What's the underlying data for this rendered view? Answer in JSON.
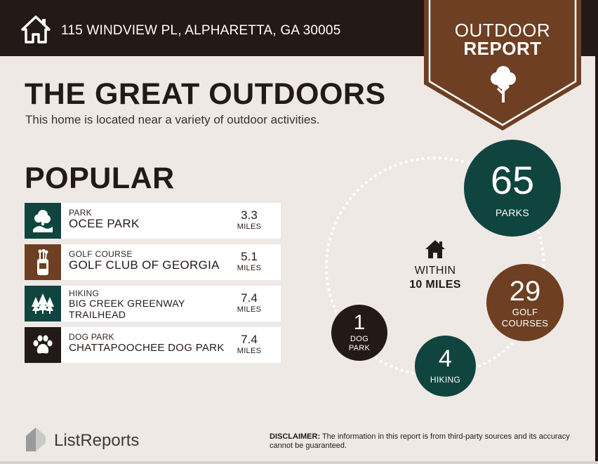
{
  "header": {
    "address": "115 WINDVIEW PL, ALPHARETTA, GA 30005",
    "badge_line1": "OUTDOOR",
    "badge_line2": "REPORT"
  },
  "intro": {
    "title": "THE GREAT OUTDOORS",
    "subtitle": "This home is located near a variety of outdoor activities."
  },
  "popular": {
    "heading": "POPULAR",
    "items": [
      {
        "category": "PARK",
        "name": "OCEE PARK",
        "distance": "3.3",
        "unit": "MILES",
        "icon": "park-icon",
        "color": "#10443f"
      },
      {
        "category": "GOLF COURSE",
        "name": "GOLF CLUB OF GEORGIA",
        "distance": "5.1",
        "unit": "MILES",
        "icon": "golf-bag-icon",
        "color": "#6e3f22"
      },
      {
        "category": "HIKING",
        "name_line1": "BIG CREEK GREENWAY",
        "name_line2": "TRAILHEAD",
        "distance": "7.4",
        "unit": "MILES",
        "icon": "pine-trees-icon",
        "color": "#10443f"
      },
      {
        "category": "DOG PARK",
        "name": "CHATTAPOOCHEE DOG PARK",
        "distance": "7.4",
        "unit": "MILES",
        "icon": "paw-icon",
        "color": "#231916"
      }
    ]
  },
  "summary": {
    "within_line1": "WITHIN",
    "within_line2": "10 MILES",
    "parks": {
      "count": "65",
      "label": "PARKS"
    },
    "golf": {
      "count": "29",
      "label_line1": "GOLF",
      "label_line2": "COURSES"
    },
    "hiking": {
      "count": "4",
      "label": "HIKING"
    },
    "dog": {
      "count": "1",
      "label_line1": "DOG",
      "label_line2": "PARK"
    }
  },
  "footer": {
    "brand": "ListReports",
    "disclaimer_label": "DISCLAIMER:",
    "disclaimer_text": " The information in this report is from third-party sources and its accuracy cannot be guaranteed."
  },
  "colors": {
    "dark": "#231916",
    "green": "#10443f",
    "brown": "#6e3f22",
    "background": "#efe9e5"
  }
}
